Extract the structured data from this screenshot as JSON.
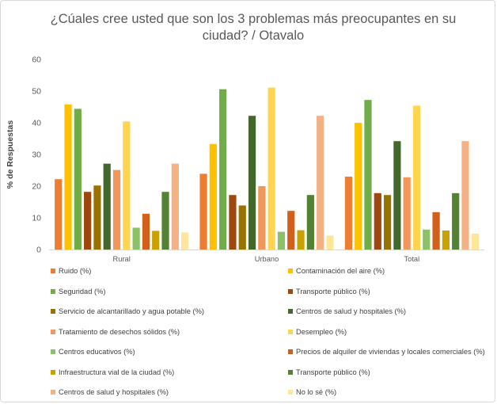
{
  "chart_data": {
    "type": "bar",
    "title": "¿Cúales cree usted que son los 3 problemas más preocupantes en su ciudad? / Otavalo",
    "ylabel": "% de Respuestas",
    "xlabel": "",
    "ylim": [
      0,
      60
    ],
    "yticks": [
      0,
      10,
      20,
      30,
      40,
      50,
      60
    ],
    "grid": false,
    "legend_position": "bottom",
    "categories": [
      "Rural",
      "Urbano",
      "Total"
    ],
    "series": [
      {
        "name": "Ruido (%)",
        "color": "#ED7D31",
        "values": [
          22.2,
          23.9,
          23.0
        ]
      },
      {
        "name": "Contaminación del aire (%)",
        "color": "#FFC000",
        "values": [
          45.8,
          33.3,
          40.0
        ]
      },
      {
        "name": "Seguridad (%)",
        "color": "#70AD47",
        "values": [
          44.4,
          50.6,
          47.2
        ]
      },
      {
        "name": "Transporte público (%)",
        "color": "#9E480E",
        "values": [
          18.2,
          17.2,
          17.8
        ]
      },
      {
        "name": "Servicio de alcantarillado y agua potable (%)",
        "color": "#997300",
        "values": [
          20.2,
          13.9,
          17.2
        ]
      },
      {
        "name": "Centros de salud y hospitales (%)",
        "color": "#43682B",
        "values": [
          27.1,
          42.2,
          34.2
        ]
      },
      {
        "name": "Tratamiento de desechos sólidos (%)",
        "color": "#F1975A",
        "values": [
          25.1,
          20.0,
          22.8
        ]
      },
      {
        "name": "Desempleo (%)",
        "color": "#FFD54F",
        "values": [
          40.4,
          51.1,
          45.4
        ]
      },
      {
        "name": "Centros educativos (%)",
        "color": "#8CC168",
        "values": [
          6.9,
          5.6,
          6.3
        ]
      },
      {
        "name": "Precios de alquiler de viviendas y locales comerciales (%)",
        "color": "#D2601A",
        "values": [
          11.3,
          12.2,
          11.8
        ]
      },
      {
        "name": "Infraestructura vial de la ciudad (%)",
        "color": "#C9A100",
        "values": [
          5.9,
          6.1,
          6.0
        ]
      },
      {
        "name": "Transporte público (%)",
        "color": "#548235",
        "values": [
          18.2,
          17.2,
          17.8
        ]
      },
      {
        "name": "Centros de salud y hospitales (%)",
        "color": "#F4B183",
        "values": [
          27.1,
          42.2,
          34.2
        ]
      },
      {
        "name": "No lo sé (%)",
        "color": "#FFE699",
        "values": [
          5.4,
          4.4,
          5.0
        ]
      }
    ]
  }
}
